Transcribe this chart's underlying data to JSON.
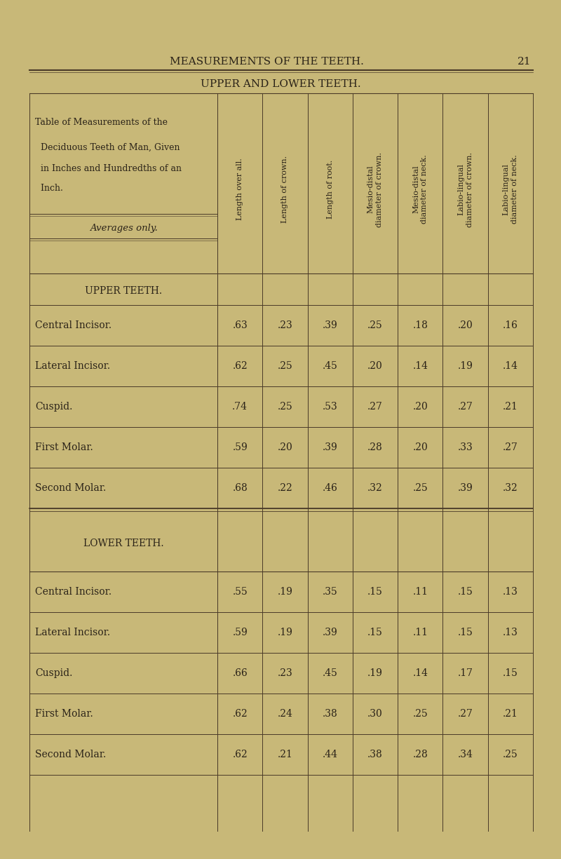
{
  "page_title": "MEASUREMENTS OF THE TEETH.",
  "page_number": "21",
  "table_title": "UPPER AND LOWER TEETH.",
  "description_line1": "T",
  "description_line1b": "able of ",
  "description_line1c": "M",
  "description_line1d": "easurements of the",
  "description_lines": [
    "Table of Measurements of the",
    "Deciduous Teeth of Man, Given",
    "in Inches and Hundredths of an",
    "Inch."
  ],
  "averages_label": "Averages only.",
  "col_headers": [
    "Length over all.",
    "Length of crown.",
    "Length of root.",
    "Mesio-distal\ndiameter of crown.",
    "Mesio-distal\ndiameter of neck.",
    "Labio-lingual\ndiameter of crown.",
    "Labio-lingual\ndiameter of neck."
  ],
  "upper_section_label": "UPPER TEETH.",
  "upper_rows": [
    [
      "Central Incisor.",
      ".63",
      ".23",
      ".39",
      ".25",
      ".18",
      ".20",
      ".16"
    ],
    [
      "Lateral Incisor.",
      ".62",
      ".25",
      ".45",
      ".20",
      ".14",
      ".19",
      ".14"
    ],
    [
      "Cuspid.",
      ".74",
      ".25",
      ".53",
      ".27",
      ".20",
      ".27",
      ".21"
    ],
    [
      "First Molar.",
      ".59",
      ".20",
      ".39",
      ".28",
      ".20",
      ".33",
      ".27"
    ],
    [
      "Second Molar.",
      ".68",
      ".22",
      ".46",
      ".32",
      ".25",
      ".39",
      ".32"
    ]
  ],
  "lower_section_label": "LOWER TEETH.",
  "lower_rows": [
    [
      "Central Incisor.",
      ".55",
      ".19",
      ".35",
      ".15",
      ".11",
      ".15",
      ".13"
    ],
    [
      "Lateral Incisor.",
      ".59",
      ".19",
      ".39",
      ".15",
      ".11",
      ".15",
      ".13"
    ],
    [
      "Cuspid.",
      ".66",
      ".23",
      ".45",
      ".19",
      ".14",
      ".17",
      ".15"
    ],
    [
      "First Molar.",
      ".62",
      ".24",
      ".38",
      ".30",
      ".25",
      ".27",
      ".21"
    ],
    [
      "Second Molar.",
      ".62",
      ".21",
      ".44",
      ".38",
      ".28",
      ".34",
      ".25"
    ]
  ],
  "bg_color": "#c8b878",
  "text_color": "#2a2218",
  "line_color": "#4a3a28"
}
